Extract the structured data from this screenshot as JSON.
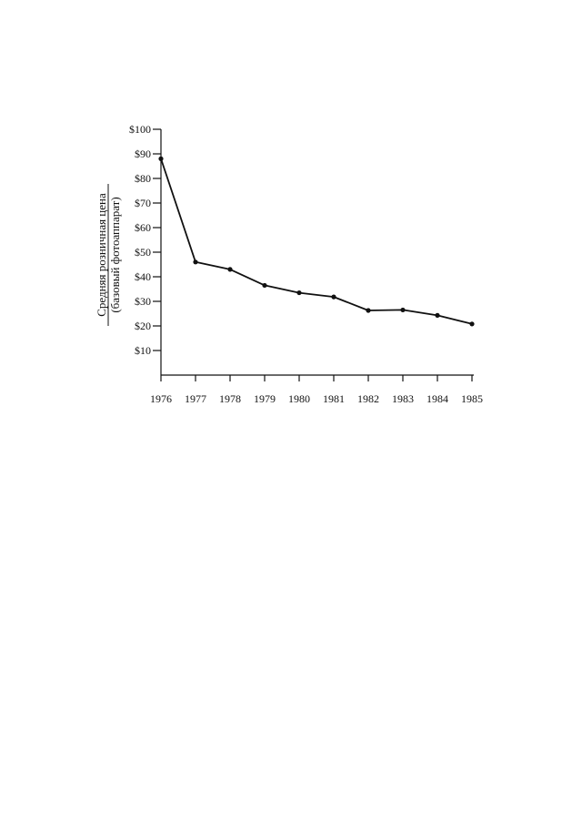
{
  "chart_data": {
    "type": "line",
    "title": "",
    "xlabel": "",
    "ylabel": "Средняя розничная цена",
    "ylabel_line2": "(базовый фотоаппарат)",
    "x": [
      "1976",
      "1977",
      "1978",
      "1979",
      "1980",
      "1981",
      "1982",
      "1983",
      "1984",
      "1985"
    ],
    "series": [
      {
        "values": [
          88,
          46,
          43,
          36.5,
          33.5,
          31.8,
          26.3,
          26.5,
          24.3,
          20.8
        ]
      }
    ],
    "ylim": [
      0,
      100
    ],
    "y_ticks": [
      10,
      20,
      30,
      40,
      50,
      60,
      70,
      80,
      90,
      100
    ],
    "y_tick_labels": [
      "$10",
      "$20",
      "$30",
      "$40",
      "$50",
      "$60",
      "$70",
      "$80",
      "$90",
      "$100"
    ],
    "grid": false,
    "legend": "none",
    "line_color": "#111111",
    "marker_color": "#111111"
  }
}
